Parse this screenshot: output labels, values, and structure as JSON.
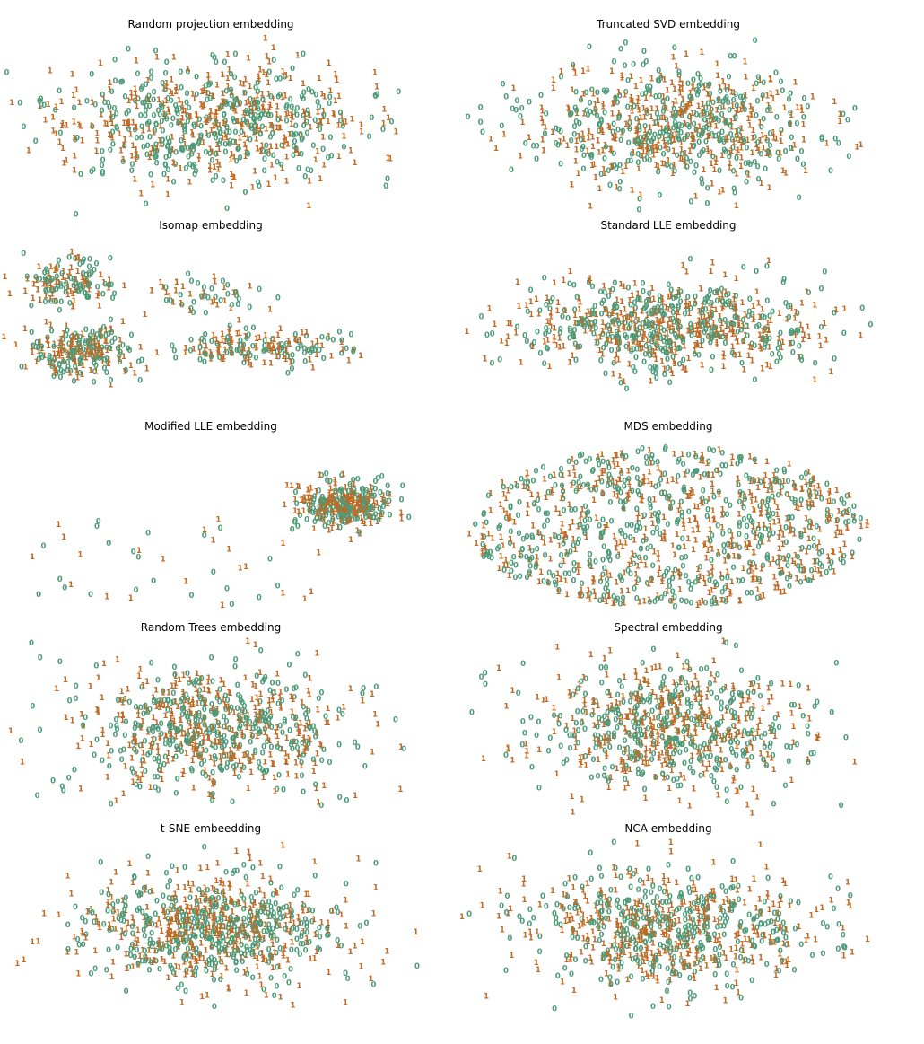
{
  "figure": {
    "colors": {
      "digit_0": "#4d9a78",
      "digit_1": "#c06a24"
    },
    "legend": "none",
    "axes_visible": false
  },
  "chart_data": [
    {
      "type": "scatter",
      "title": "Random projection embedding",
      "shape": "blob",
      "spread": [
        0.45,
        0.42
      ],
      "points_per_class": 380,
      "seed": 11,
      "grid": false
    },
    {
      "type": "scatter",
      "title": "Truncated SVD embedding",
      "shape": "blob",
      "spread": [
        0.44,
        0.42
      ],
      "points_per_class": 380,
      "seed": 23,
      "grid": false
    },
    {
      "type": "scatter",
      "title": "Isomap embedding",
      "shape": "clusters",
      "points_per_class": 320,
      "seed": 37,
      "grid": false
    },
    {
      "type": "scatter",
      "title": "Standard LLE embedding",
      "shape": "blob",
      "spread": [
        0.46,
        0.32
      ],
      "points_per_class": 380,
      "seed": 41,
      "grid": false
    },
    {
      "type": "scatter",
      "title": "Modified LLE embedding",
      "shape": "corner",
      "points_per_class": 200,
      "seed": 53,
      "grid": false
    },
    {
      "type": "scatter",
      "title": "MDS embedding",
      "shape": "ellipse",
      "points_per_class": 520,
      "seed": 61,
      "grid": false
    },
    {
      "type": "scatter",
      "title": "Random Trees embedding",
      "shape": "blob",
      "spread": [
        0.42,
        0.44
      ],
      "points_per_class": 380,
      "seed": 71,
      "grid": false
    },
    {
      "type": "scatter",
      "title": "Spectral embedding",
      "shape": "blob",
      "spread": [
        0.42,
        0.42
      ],
      "points_per_class": 380,
      "seed": 83,
      "grid": false
    },
    {
      "type": "scatter",
      "title": "t-SNE embeedding",
      "shape": "blob",
      "spread": [
        0.4,
        0.38
      ],
      "points_per_class": 420,
      "seed": 97,
      "grid": false
    },
    {
      "type": "scatter",
      "title": "NCA embedding",
      "shape": "blob",
      "spread": [
        0.44,
        0.4
      ],
      "points_per_class": 400,
      "seed": 103,
      "grid": false
    }
  ]
}
